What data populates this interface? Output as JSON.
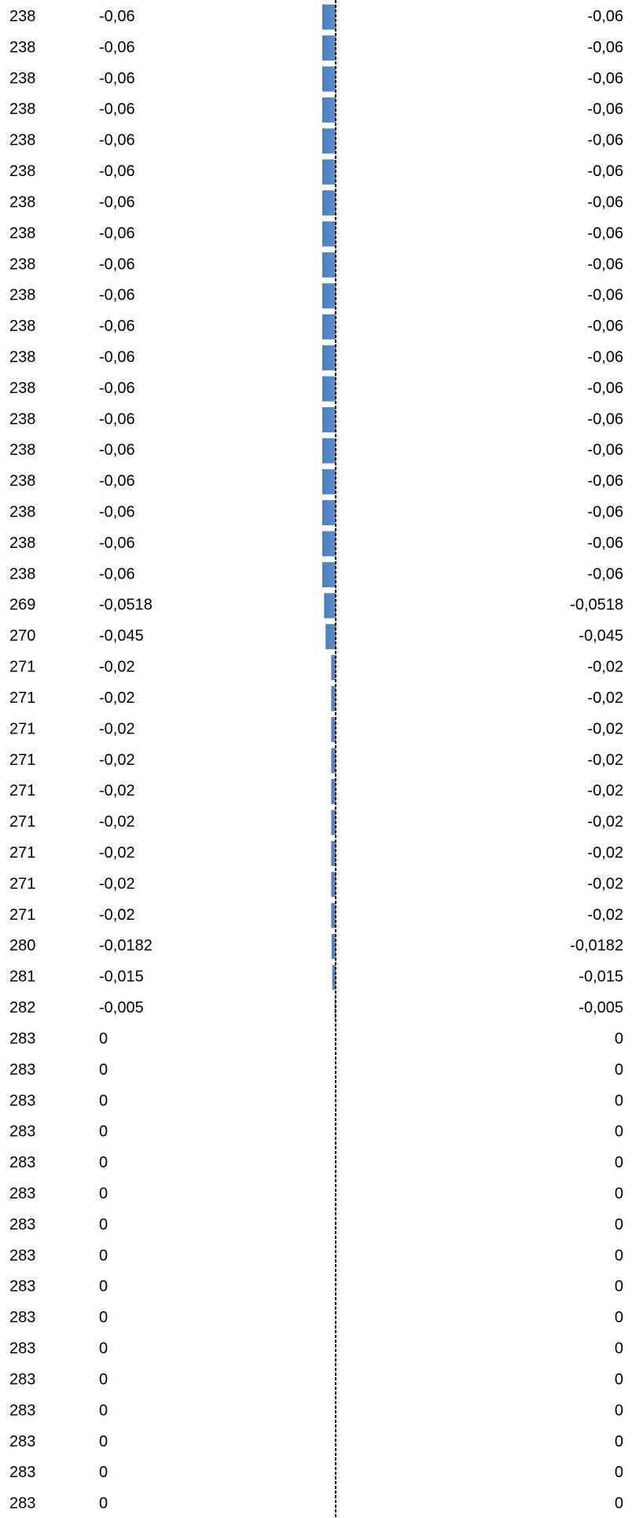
{
  "table": {
    "rows": [
      [
        238,
        -0.06,
        "-0,06"
      ],
      [
        238,
        -0.06,
        "-0,06"
      ],
      [
        238,
        -0.06,
        "-0,06"
      ],
      [
        238,
        -0.06,
        "-0,06"
      ],
      [
        238,
        -0.06,
        "-0,06"
      ],
      [
        238,
        -0.06,
        "-0,06"
      ],
      [
        238,
        -0.06,
        "-0,06"
      ],
      [
        238,
        -0.06,
        "-0,06"
      ],
      [
        238,
        -0.06,
        "-0,06"
      ],
      [
        238,
        -0.06,
        "-0,06"
      ],
      [
        238,
        -0.06,
        "-0,06"
      ],
      [
        238,
        -0.06,
        "-0,06"
      ],
      [
        238,
        -0.06,
        "-0,06"
      ],
      [
        238,
        -0.06,
        "-0,06"
      ],
      [
        238,
        -0.06,
        "-0,06"
      ],
      [
        238,
        -0.06,
        "-0,06"
      ],
      [
        238,
        -0.06,
        "-0,06"
      ],
      [
        238,
        -0.06,
        "-0,06"
      ],
      [
        238,
        -0.06,
        "-0,06"
      ],
      [
        269,
        -0.0518,
        "-0,0518"
      ],
      [
        270,
        -0.045,
        "-0,045"
      ],
      [
        271,
        -0.02,
        "-0,02"
      ],
      [
        271,
        -0.02,
        "-0,02"
      ],
      [
        271,
        -0.02,
        "-0,02"
      ],
      [
        271,
        -0.02,
        "-0,02"
      ],
      [
        271,
        -0.02,
        "-0,02"
      ],
      [
        271,
        -0.02,
        "-0,02"
      ],
      [
        271,
        -0.02,
        "-0,02"
      ],
      [
        271,
        -0.02,
        "-0,02"
      ],
      [
        271,
        -0.02,
        "-0,02"
      ],
      [
        280,
        -0.0182,
        "-0,0182"
      ],
      [
        281,
        -0.015,
        "-0,015"
      ],
      [
        282,
        -0.005,
        "-0,005"
      ],
      [
        283,
        0,
        "0"
      ],
      [
        283,
        0,
        "0"
      ],
      [
        283,
        0,
        "0"
      ],
      [
        283,
        0,
        "0"
      ],
      [
        283,
        0,
        "0"
      ],
      [
        283,
        0,
        "0"
      ],
      [
        283,
        0,
        "0"
      ],
      [
        283,
        0,
        "0"
      ],
      [
        283,
        0,
        "0"
      ],
      [
        283,
        0,
        "0"
      ],
      [
        283,
        0,
        "0"
      ],
      [
        283,
        0,
        "0"
      ],
      [
        283,
        0,
        "0"
      ],
      [
        283,
        0,
        "0"
      ],
      [
        283,
        0,
        "0"
      ],
      [
        283,
        0,
        "0"
      ]
    ]
  }
}
